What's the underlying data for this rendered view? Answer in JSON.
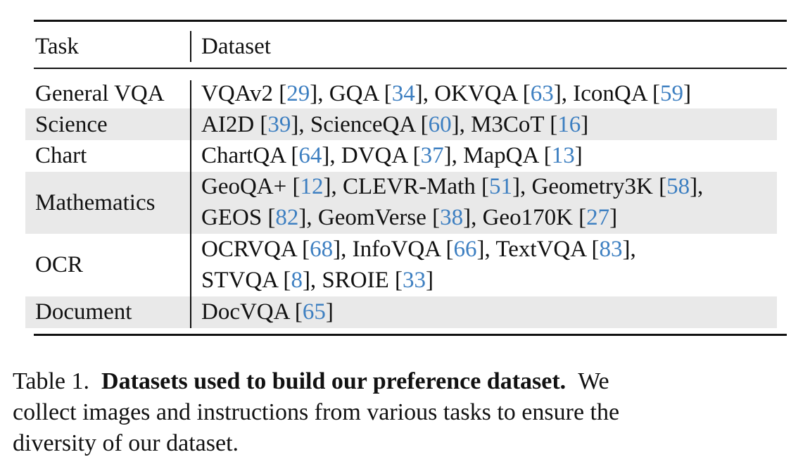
{
  "table": {
    "headers": {
      "task": "Task",
      "dataset": "Dataset"
    },
    "rows": [
      {
        "task": "General VQA",
        "lines": [
          [
            {
              "t": "VQAv2 ["
            },
            {
              "r": "29"
            },
            {
              "t": "], GQA ["
            },
            {
              "r": "34"
            },
            {
              "t": "], OKVQA ["
            },
            {
              "r": "63"
            },
            {
              "t": "], IconQA ["
            },
            {
              "r": "59"
            },
            {
              "t": "]"
            }
          ]
        ]
      },
      {
        "task": "Science",
        "lines": [
          [
            {
              "t": "AI2D ["
            },
            {
              "r": "39"
            },
            {
              "t": "], ScienceQA ["
            },
            {
              "r": "60"
            },
            {
              "t": "], M3CoT ["
            },
            {
              "r": "16"
            },
            {
              "t": "]"
            }
          ]
        ]
      },
      {
        "task": "Chart",
        "lines": [
          [
            {
              "t": "ChartQA ["
            },
            {
              "r": "64"
            },
            {
              "t": "], DVQA ["
            },
            {
              "r": "37"
            },
            {
              "t": "], MapQA ["
            },
            {
              "r": "13"
            },
            {
              "t": "]"
            }
          ]
        ]
      },
      {
        "task": "Mathematics",
        "lines": [
          [
            {
              "t": "GeoQA+ ["
            },
            {
              "r": "12"
            },
            {
              "t": "], CLEVR-Math ["
            },
            {
              "r": "51"
            },
            {
              "t": "], Geometry3K ["
            },
            {
              "r": "58"
            },
            {
              "t": "],"
            }
          ],
          [
            {
              "t": "GEOS ["
            },
            {
              "r": "82"
            },
            {
              "t": "], GeomVerse ["
            },
            {
              "r": "38"
            },
            {
              "t": "], Geo170K ["
            },
            {
              "r": "27"
            },
            {
              "t": "]"
            }
          ]
        ]
      },
      {
        "task": "OCR",
        "lines": [
          [
            {
              "t": "OCRVQA ["
            },
            {
              "r": "68"
            },
            {
              "t": "], InfoVQA ["
            },
            {
              "r": "66"
            },
            {
              "t": "], TextVQA ["
            },
            {
              "r": "83"
            },
            {
              "t": "],"
            }
          ],
          [
            {
              "t": "STVQA ["
            },
            {
              "r": "8"
            },
            {
              "t": "], SROIE ["
            },
            {
              "r": "33"
            },
            {
              "t": "]"
            }
          ]
        ]
      },
      {
        "task": "Document",
        "lines": [
          [
            {
              "t": "DocVQA ["
            },
            {
              "r": "65"
            },
            {
              "t": "]"
            }
          ]
        ]
      }
    ]
  },
  "caption": {
    "label": "Table 1.",
    "bold": "Datasets used to build our preference dataset.",
    "line1_rest": "We",
    "line2": "collect images and instructions from various tasks to ensure the",
    "line3": "diversity of our dataset."
  },
  "colors": {
    "citation": "#3d7fc1",
    "row_shade": "#e9e9e9"
  }
}
